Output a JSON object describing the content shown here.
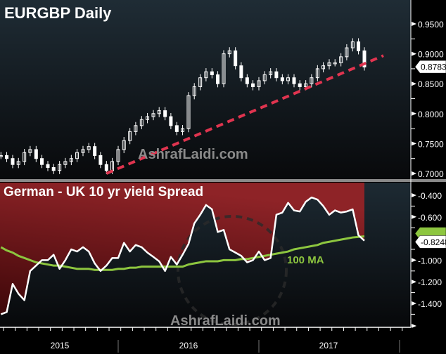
{
  "chart_data": [
    {
      "type": "candlestick",
      "title": "EURGBP Daily",
      "watermark": "AshrafLaidi.com",
      "ylim": [
        0.69,
        0.965
      ],
      "yticks": [
        "0.9500",
        "0.9000",
        "0.8500",
        "0.8000",
        "0.7500",
        "0.7000"
      ],
      "last_value_tag": "0.8783",
      "closes": [
        0.73,
        0.725,
        0.715,
        0.72,
        0.735,
        0.74,
        0.725,
        0.715,
        0.71,
        0.705,
        0.715,
        0.72,
        0.725,
        0.735,
        0.74,
        0.745,
        0.73,
        0.715,
        0.705,
        0.72,
        0.74,
        0.755,
        0.77,
        0.78,
        0.79,
        0.795,
        0.8,
        0.805,
        0.795,
        0.78,
        0.77,
        0.775,
        0.83,
        0.845,
        0.86,
        0.87,
        0.865,
        0.85,
        0.9,
        0.905,
        0.88,
        0.86,
        0.85,
        0.845,
        0.855,
        0.865,
        0.87,
        0.86,
        0.855,
        0.86,
        0.85,
        0.845,
        0.85,
        0.86,
        0.875,
        0.88,
        0.885,
        0.885,
        0.895,
        0.91,
        0.92,
        0.905,
        0.878
      ],
      "trendline": {
        "from": [
          "2015-12-01",
          0.7
        ],
        "to": [
          "2017-11-20",
          0.897
        ],
        "color": "#e0344f",
        "style": "dashed"
      },
      "colors": {
        "candles": "#ffffff"
      }
    },
    {
      "type": "line",
      "title": "German - UK 10 yr yield Spread",
      "watermark": "AshrafLaidi.com",
      "ylim": [
        -1.6,
        -0.3
      ],
      "yticks": [
        "-0.400",
        "-0.600",
        "-1.000",
        "-1.200",
        "-1.400"
      ],
      "last_value_tag": "-0.8248",
      "series": [
        {
          "values": [
            -1.5,
            -1.48,
            -1.22,
            -1.31,
            -1.37,
            -1.1,
            -1.05,
            -1.0,
            -1.0,
            -0.95,
            -1.08,
            -1.0,
            -0.9,
            -0.92,
            -0.88,
            -0.92,
            -1.03,
            -1.1,
            -1.05,
            -0.98,
            -0.98,
            -0.84,
            -0.92,
            -0.86,
            -0.88,
            -0.93,
            -0.97,
            -1.01,
            -1.1,
            -0.97,
            -1.04,
            -0.95,
            -0.85,
            -0.66,
            -0.58,
            -0.49,
            -0.53,
            -0.74,
            -0.72,
            -0.9,
            -0.93,
            -0.96,
            -1.02,
            -1.0,
            -0.92,
            -1.0,
            -0.98,
            -0.58,
            -0.56,
            -0.47,
            -0.54,
            -0.55,
            -0.46,
            -0.42,
            -0.44,
            -0.5,
            -0.58,
            -0.54,
            -0.56,
            -0.55,
            -0.53,
            -0.77,
            -0.82
          ],
          "color": "#ffffff"
        },
        {
          "name": "100 MA",
          "values": [
            -0.88,
            -0.91,
            -0.93,
            -0.96,
            -0.98,
            -1.0,
            -1.02,
            -1.03,
            -1.04,
            -1.05,
            -1.05,
            -1.06,
            -1.07,
            -1.08,
            -1.08,
            -1.08,
            -1.09,
            -1.09,
            -1.09,
            -1.09,
            -1.08,
            -1.08,
            -1.07,
            -1.07,
            -1.06,
            -1.06,
            -1.06,
            -1.06,
            -1.06,
            -1.06,
            -1.06,
            -1.06,
            -1.04,
            -1.03,
            -1.02,
            -1.01,
            -1.01,
            -1.01,
            -1.0,
            -1.0,
            -1.0,
            -0.99,
            -0.99,
            -0.98,
            -0.97,
            -0.96,
            -0.95,
            -0.94,
            -0.93,
            -0.92,
            -0.9,
            -0.89,
            -0.88,
            -0.87,
            -0.86,
            -0.84,
            -0.83,
            -0.82,
            -0.81,
            -0.8,
            -0.79,
            -0.785,
            -0.78
          ],
          "color": "#8dc63f"
        }
      ],
      "fill_above_color": "#8b1f23"
    }
  ],
  "dates": [
    "2015-03-01",
    "2015-03-16",
    "2015-04-01",
    "2015-04-16",
    "2015-05-01",
    "2015-05-16",
    "2015-06-01",
    "2015-06-16",
    "2015-07-01",
    "2015-07-16",
    "2015-08-01",
    "2015-08-16",
    "2015-09-01",
    "2015-09-16",
    "2015-10-01",
    "2015-10-16",
    "2015-11-01",
    "2015-11-16",
    "2015-12-01",
    "2015-12-16",
    "2016-01-01",
    "2016-01-16",
    "2016-02-01",
    "2016-02-16",
    "2016-03-01",
    "2016-03-16",
    "2016-04-01",
    "2016-04-16",
    "2016-05-01",
    "2016-05-16",
    "2016-06-01",
    "2016-06-16",
    "2016-07-01",
    "2016-07-16",
    "2016-08-01",
    "2016-08-16",
    "2016-09-01",
    "2016-09-16",
    "2016-10-01",
    "2016-10-16",
    "2016-11-01",
    "2016-11-16",
    "2016-12-01",
    "2016-12-16",
    "2017-01-01",
    "2017-01-16",
    "2017-02-01",
    "2017-02-16",
    "2017-03-01",
    "2017-03-16",
    "2017-04-01",
    "2017-04-16",
    "2017-05-01",
    "2017-05-16",
    "2017-06-01",
    "2017-06-16",
    "2017-07-01",
    "2017-07-16",
    "2017-08-01",
    "2017-08-16",
    "2017-09-01",
    "2017-09-16",
    "2017-10-01"
  ],
  "x_axis": {
    "labels": [
      "2015",
      "2016",
      "2017"
    ]
  }
}
